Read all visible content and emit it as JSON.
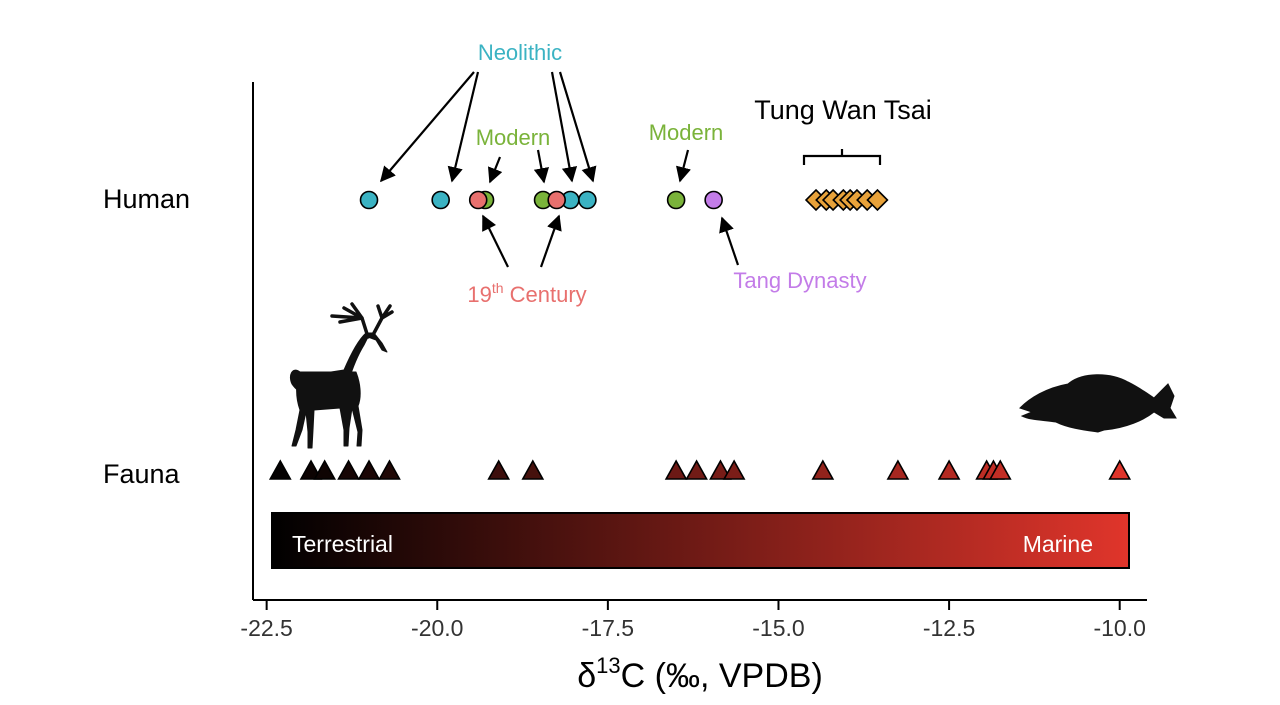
{
  "chart_data": {
    "type": "scatter",
    "xlabel": {
      "prefix": "δ",
      "sup": "13",
      "suffix": "C (‰, VPDB)"
    },
    "xlim": [
      -22.7,
      -9.6
    ],
    "xticks": [
      -22.5,
      -20.0,
      -17.5,
      -15.0,
      -12.5,
      -10.0
    ],
    "xtick_labels": [
      "-22.5",
      "-20.0",
      "-17.5",
      "-15.0",
      "-12.5",
      "-10.0"
    ],
    "categories": [
      "Human",
      "Fauna"
    ],
    "series": [
      {
        "name": "Neolithic",
        "color": "#3bb3c3",
        "marker": "circle",
        "row": "Human",
        "x": [
          -21.0,
          -19.95,
          -18.05,
          -17.8
        ]
      },
      {
        "name": "Modern",
        "color": "#7ab33a",
        "marker": "circle",
        "row": "Human",
        "x": [
          -19.3,
          -18.45,
          -16.5
        ]
      },
      {
        "name": "19th Century",
        "color": "#e8706e",
        "marker": "circle",
        "row": "Human",
        "x": [
          -19.4,
          -18.25
        ]
      },
      {
        "name": "Tang Dynasty",
        "color": "#c37ce8",
        "marker": "circle",
        "row": "Human",
        "x": [
          -15.95
        ]
      },
      {
        "name": "Tung Wan Tsai",
        "color": "#e8a23a",
        "marker": "diamond",
        "row": "Human",
        "x": [
          -14.45,
          -14.3,
          -14.2,
          -14.05,
          -13.95,
          -13.85,
          -13.7,
          -13.55
        ]
      },
      {
        "name": "Fauna",
        "marker": "triangle",
        "row": "Fauna",
        "x": [
          -22.3,
          -21.85,
          -21.65,
          -21.3,
          -21.0,
          -20.7,
          -19.1,
          -18.6,
          -16.5,
          -16.2,
          -15.85,
          -15.65,
          -14.35,
          -13.25,
          -12.5,
          -11.95,
          -11.85,
          -11.75,
          -10.0
        ]
      }
    ],
    "annotations": {
      "neolithic": "Neolithic",
      "modern_left": "Modern",
      "modern_right": "Modern",
      "century_base": "19",
      "century_sup": "th",
      "century_rest": " Century",
      "tang": "Tang Dynasty",
      "tung_wan_tsai": "Tung Wan Tsai"
    },
    "gradient_bar": {
      "left_label": "Terrestrial",
      "right_label": "Marine",
      "colors": [
        "#000000",
        "#e0352b"
      ]
    },
    "icons": [
      "deer-silhouette-icon",
      "fish-silhouette-icon"
    ]
  }
}
